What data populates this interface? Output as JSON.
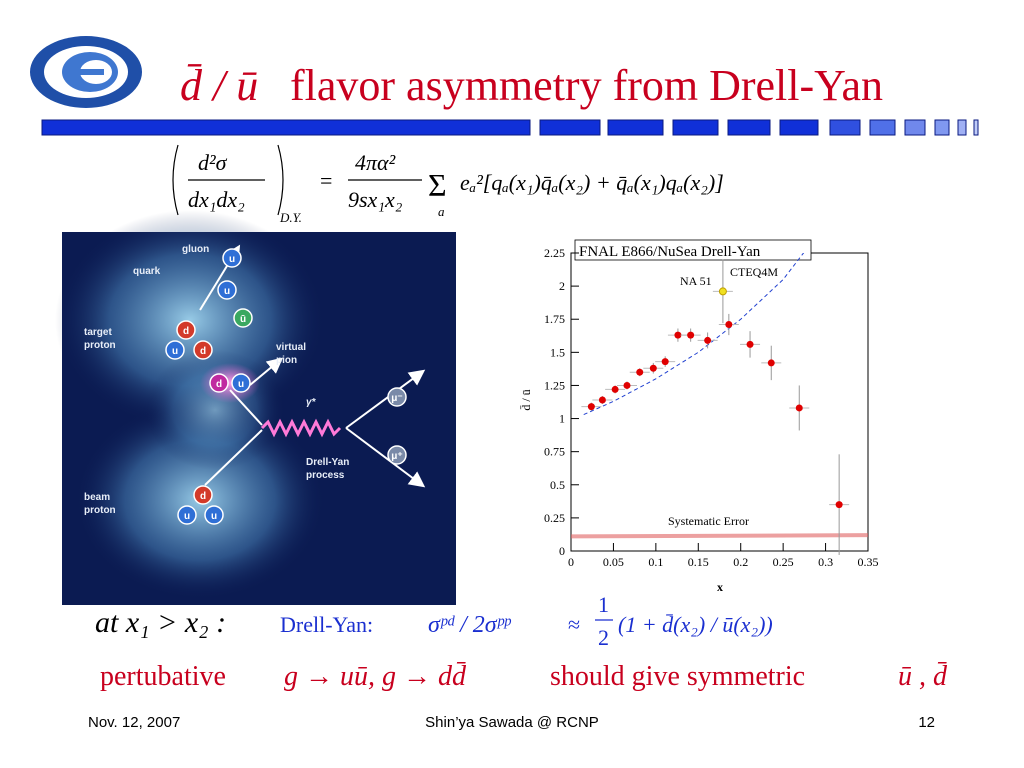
{
  "title_math": "d̄ / ū",
  "title_text": "flavor asymmetry from Drell-Yan",
  "formula": {
    "num": "d²σ",
    "den": "dx₁dx₂",
    "sub": "D.Y.",
    "eq": "=",
    "num2": "4πα²",
    "den2": "9sx₁x₂",
    "sum": "Σ",
    "sum_index": "a",
    "rhs": "eₐ²[qₐ(x₁)q̄ₐ(x₂) + q̄ₐ(x₁)qₐ(x₂)]"
  },
  "diagram": {
    "labels": {
      "gluon": "gluon",
      "quark": "quark",
      "target": [
        "target",
        "proton"
      ],
      "pion": [
        "virtual",
        "pion"
      ],
      "photon": "γ*",
      "dy": [
        "Drell-Yan",
        "process"
      ],
      "beam": [
        "beam",
        "proton"
      ]
    },
    "quarks": [
      {
        "label": "u",
        "color": "#2f6fd6"
      },
      {
        "label": "u",
        "color": "#2f6fd6"
      },
      {
        "label": "ū",
        "color": "#3aa860"
      },
      {
        "label": "d",
        "color": "#d33a2a"
      },
      {
        "label": "u",
        "color": "#2f6fd6"
      },
      {
        "label": "d",
        "color": "#d33a2a"
      },
      {
        "label": "d",
        "color": "#c02aa0"
      },
      {
        "label": "u",
        "color": "#2f6fd6"
      },
      {
        "label": "μ⁻",
        "color": "#7a8aa8"
      },
      {
        "label": "μ⁺",
        "color": "#7a8aa8"
      },
      {
        "label": "d",
        "color": "#d33a2a"
      },
      {
        "label": "u",
        "color": "#2f6fd6"
      },
      {
        "label": "u",
        "color": "#2f6fd6"
      }
    ]
  },
  "chart_data": {
    "type": "scatter",
    "title": "FNAL E866/NuSea Drell-Yan",
    "xlabel": "x",
    "ylabel": "d̄ / ū",
    "xlim": [
      0,
      0.35
    ],
    "ylim": [
      0,
      2.25
    ],
    "xticks": [
      0,
      0.05,
      0.1,
      0.15,
      0.2,
      0.25,
      0.3,
      0.35
    ],
    "yticks": [
      0,
      0.25,
      0.5,
      0.75,
      1,
      1.25,
      1.5,
      1.75,
      2,
      2.25
    ],
    "series": [
      {
        "color": "#e00000",
        "x": [
          0.024,
          0.037,
          0.052,
          0.066,
          0.081,
          0.097,
          0.111,
          0.126,
          0.141,
          0.161,
          0.186,
          0.211,
          0.236,
          0.269,
          0.316
        ],
        "values": [
          1.09,
          1.14,
          1.22,
          1.25,
          1.35,
          1.38,
          1.43,
          1.63,
          1.63,
          1.59,
          1.71,
          1.56,
          1.42,
          1.08,
          0.35
        ],
        "errors": [
          0.03,
          0.03,
          0.03,
          0.03,
          0.03,
          0.04,
          0.04,
          0.05,
          0.05,
          0.06,
          0.08,
          0.1,
          0.13,
          0.17,
          0.38
        ]
      },
      {
        "name": "NA 51",
        "color": "#f0e020",
        "x": [
          0.179
        ],
        "values": [
          1.96
        ],
        "errors": [
          0.24
        ]
      },
      {
        "name": "CTEQ4M",
        "color": "#2040d0",
        "line": "dashed",
        "x": [
          0.015,
          0.05,
          0.1,
          0.15,
          0.2,
          0.25,
          0.28
        ],
        "values": [
          1.03,
          1.13,
          1.3,
          1.5,
          1.75,
          2.05,
          2.3
        ]
      },
      {
        "name": "Systematic Error",
        "color": "#e06060",
        "x": [
          0,
          0.35
        ],
        "values": [
          0.11,
          0.12
        ]
      }
    ]
  },
  "line1": {
    "a": "at  x₁ > x₂ :",
    "b": "Drell-Yan:",
    "c": "σᵖᵈ / 2σᵖᵖ",
    "d": "≈",
    "e": "1",
    "f": "2",
    "g": "(1 + d̄(x₂) / ū(x₂))"
  },
  "line2": {
    "a": "pertubative",
    "b": "g → uū,  g → dd̄",
    "c": "should give symmetric",
    "d": "ū , d̄"
  },
  "footer": {
    "date": "Nov. 12, 2007",
    "author": "Shin’ya Sawada @ RCNP",
    "page": "12"
  }
}
